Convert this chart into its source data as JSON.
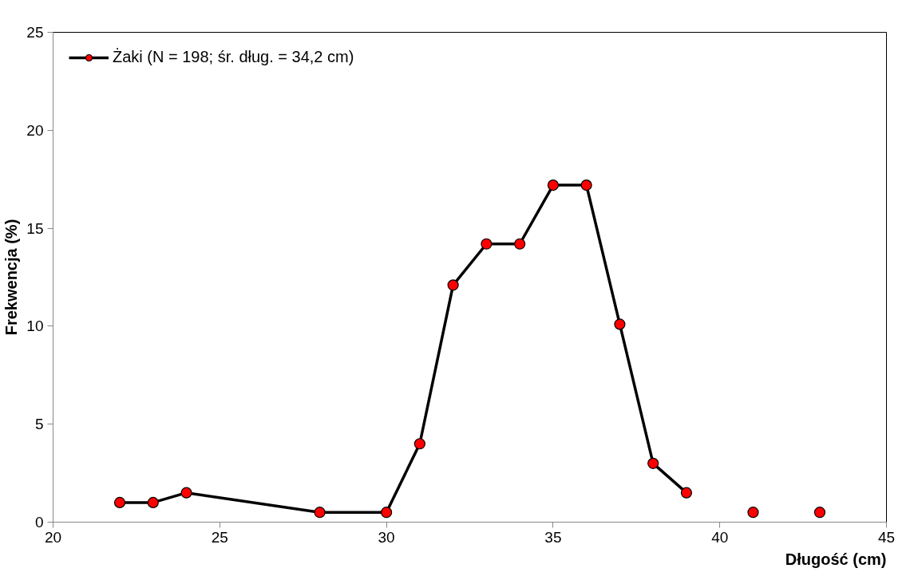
{
  "chart_data": {
    "type": "line",
    "xlabel": "Długość (cm)",
    "ylabel": "Frekwencja (%)",
    "x": [
      22,
      23,
      24,
      28,
      30,
      31,
      32,
      33,
      34,
      35,
      36,
      37,
      38,
      39,
      40,
      41,
      42,
      43
    ],
    "series": [
      {
        "name": "Żaki (N = 198; śr. dług. = 34,2 cm)",
        "color": "#000000",
        "values": [
          1.0,
          1.0,
          1.5,
          0.5,
          0.5,
          4.0,
          12.1,
          14.2,
          14.2,
          17.2,
          17.2,
          10.1,
          3.0,
          1.5,
          null,
          0.5,
          null,
          0.5
        ]
      }
    ],
    "xlim": [
      20,
      45
    ],
    "xticks": [
      20,
      25,
      30,
      35,
      40,
      45
    ],
    "ylim": [
      0,
      25
    ],
    "yticks": [
      0,
      5,
      10,
      15,
      20,
      25
    ],
    "grid": false,
    "legend": "top left",
    "marker": "circle",
    "line_style": "solid"
  }
}
